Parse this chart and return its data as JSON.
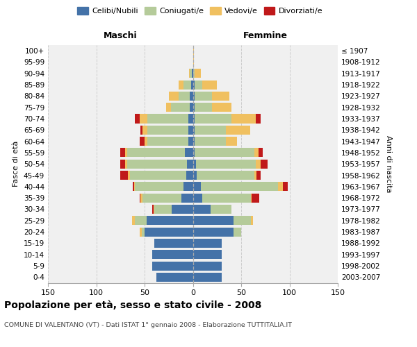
{
  "age_groups": [
    "0-4",
    "5-9",
    "10-14",
    "15-19",
    "20-24",
    "25-29",
    "30-34",
    "35-39",
    "40-44",
    "45-49",
    "50-54",
    "55-59",
    "60-64",
    "65-69",
    "70-74",
    "75-79",
    "80-84",
    "85-89",
    "90-94",
    "95-99",
    "100+"
  ],
  "birth_years": [
    "2003-2007",
    "1998-2002",
    "1993-1997",
    "1988-1992",
    "1983-1987",
    "1978-1982",
    "1973-1977",
    "1968-1972",
    "1963-1967",
    "1958-1962",
    "1953-1957",
    "1948-1952",
    "1943-1947",
    "1938-1942",
    "1933-1937",
    "1928-1932",
    "1923-1927",
    "1918-1922",
    "1913-1917",
    "1908-1912",
    "≤ 1907"
  ],
  "male_celibi": [
    38,
    42,
    42,
    40,
    50,
    48,
    22,
    12,
    10,
    7,
    6,
    8,
    5,
    5,
    5,
    3,
    3,
    2,
    1,
    0,
    0
  ],
  "male_coniugati": [
    0,
    0,
    0,
    0,
    3,
    12,
    18,
    40,
    50,
    58,
    62,
    60,
    42,
    42,
    42,
    20,
    12,
    8,
    2,
    0,
    0
  ],
  "male_vedovi": [
    0,
    0,
    0,
    0,
    2,
    3,
    1,
    2,
    1,
    2,
    2,
    2,
    3,
    5,
    8,
    5,
    10,
    5,
    1,
    0,
    0
  ],
  "male_divorziati": [
    0,
    0,
    0,
    0,
    0,
    0,
    1,
    1,
    1,
    8,
    5,
    5,
    5,
    2,
    5,
    0,
    0,
    0,
    0,
    0,
    0
  ],
  "female_celibi": [
    30,
    30,
    30,
    30,
    42,
    42,
    18,
    10,
    8,
    4,
    3,
    2,
    2,
    2,
    2,
    2,
    2,
    2,
    0,
    0,
    0
  ],
  "female_coniugati": [
    0,
    0,
    0,
    0,
    8,
    18,
    22,
    50,
    80,
    60,
    62,
    62,
    32,
    32,
    38,
    18,
    18,
    8,
    2,
    0,
    0
  ],
  "female_vedovi": [
    0,
    0,
    0,
    0,
    0,
    2,
    0,
    1,
    5,
    2,
    5,
    4,
    12,
    25,
    25,
    20,
    18,
    15,
    6,
    1,
    1
  ],
  "female_divorziati": [
    0,
    0,
    0,
    0,
    0,
    0,
    0,
    8,
    5,
    4,
    7,
    4,
    0,
    0,
    5,
    0,
    0,
    0,
    0,
    0,
    0
  ],
  "colors": {
    "celibi": "#4472a8",
    "coniugati": "#b5cb9a",
    "vedovi": "#f0c060",
    "divorziati": "#c0191a"
  },
  "title": "Popolazione per età, sesso e stato civile - 2008",
  "subtitle": "COMUNE DI VALENTANO (VT) - Dati ISTAT 1° gennaio 2008 - Elaborazione TUTTITALIA.IT",
  "xlabel_left": "Maschi",
  "xlabel_right": "Femmine",
  "ylabel_left": "Fasce di età",
  "ylabel_right": "Anni di nascita",
  "xlim": 150,
  "bg_color": "#f0f0f0",
  "grid_color": "#cccccc"
}
